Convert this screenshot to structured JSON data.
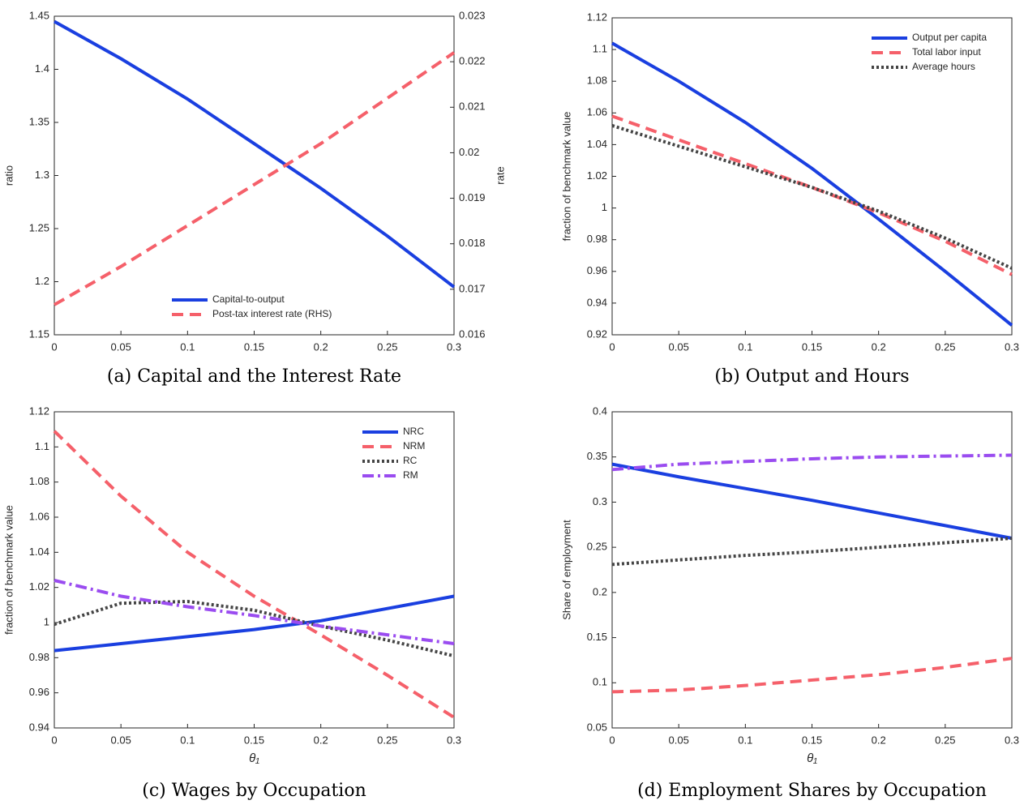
{
  "chart_data": [
    {
      "type": "line",
      "title": "(a) Capital and the Interest Rate",
      "ylabel": "ratio",
      "y2label": "rate",
      "x": [
        0,
        0.05,
        0.1,
        0.15,
        0.2,
        0.25,
        0.3
      ],
      "series": [
        {
          "name": "Capital-to-output",
          "color": "#1a3fe0",
          "style": "solid",
          "values": [
            1.445,
            1.41,
            1.372,
            1.33,
            1.288,
            1.243,
            1.195
          ]
        },
        {
          "name": "Post-tax interest rate (RHS)",
          "color": "#f5606a",
          "style": "dashed",
          "axis": "y2",
          "values": [
            0.01666,
            0.0175,
            0.0184,
            0.0193,
            0.0202,
            0.0212,
            0.0222
          ]
        }
      ],
      "xlim": [
        0,
        0.3
      ],
      "xticks": [
        0,
        0.05,
        0.1,
        0.15,
        0.2,
        0.25,
        0.3
      ],
      "ylim": [
        1.15,
        1.45
      ],
      "yticks": [
        1.15,
        1.2,
        1.25,
        1.3,
        1.35,
        1.4,
        1.45
      ],
      "y2lim": [
        0.016,
        0.023
      ],
      "y2ticks": [
        0.016,
        0.017,
        0.018,
        0.019,
        0.02,
        0.021,
        0.022,
        0.023
      ],
      "legend": "bottom"
    },
    {
      "type": "line",
      "title": "(b) Output and Hours",
      "ylabel": "fraction of benchmark value",
      "x": [
        0,
        0.05,
        0.1,
        0.15,
        0.2,
        0.25,
        0.3
      ],
      "series": [
        {
          "name": "Output per capita",
          "color": "#1a3fe0",
          "style": "solid",
          "values": [
            1.104,
            1.08,
            1.054,
            1.025,
            0.993,
            0.96,
            0.926
          ]
        },
        {
          "name": "Total labor input",
          "color": "#f5606a",
          "style": "dashed",
          "values": [
            1.058,
            1.043,
            1.028,
            1.013,
            0.997,
            0.979,
            0.958
          ]
        },
        {
          "name": "Average hours",
          "color": "#444444",
          "style": "dotted",
          "values": [
            1.052,
            1.039,
            1.026,
            1.013,
            0.998,
            0.981,
            0.962
          ]
        }
      ],
      "xlim": [
        0,
        0.3
      ],
      "xticks": [
        0,
        0.05,
        0.1,
        0.15,
        0.2,
        0.25,
        0.3
      ],
      "ylim": [
        0.92,
        1.12
      ],
      "yticks": [
        0.92,
        0.94,
        0.96,
        0.98,
        1,
        1.02,
        1.04,
        1.06,
        1.08,
        1.1,
        1.12
      ],
      "legend": "upper right"
    },
    {
      "type": "line",
      "title": "(c) Wages by Occupation",
      "ylabel": "fraction of benchmark value",
      "xlabel": "θ₁",
      "x": [
        0,
        0.05,
        0.1,
        0.15,
        0.2,
        0.25,
        0.3
      ],
      "series": [
        {
          "name": "NRC",
          "color": "#1a3fe0",
          "style": "solid",
          "values": [
            0.984,
            0.988,
            0.992,
            0.996,
            1.001,
            1.008,
            1.015
          ]
        },
        {
          "name": "NRM",
          "color": "#f5606a",
          "style": "dashed",
          "values": [
            1.109,
            1.072,
            1.04,
            1.015,
            0.993,
            0.97,
            0.946
          ]
        },
        {
          "name": "RC",
          "color": "#444444",
          "style": "dotted",
          "values": [
            0.999,
            1.011,
            1.012,
            1.007,
            0.998,
            0.99,
            0.981
          ]
        },
        {
          "name": "RM",
          "color": "#9a4cf0",
          "style": "dashdot",
          "values": [
            1.024,
            1.015,
            1.009,
            1.004,
            0.998,
            0.993,
            0.988
          ]
        }
      ],
      "xlim": [
        0,
        0.3
      ],
      "xticks": [
        0,
        0.05,
        0.1,
        0.15,
        0.2,
        0.25,
        0.3
      ],
      "ylim": [
        0.94,
        1.12
      ],
      "yticks": [
        0.94,
        0.96,
        0.98,
        1,
        1.02,
        1.04,
        1.06,
        1.08,
        1.1,
        1.12
      ],
      "legend": "upper right"
    },
    {
      "type": "line",
      "title": "(d) Employment Shares by Occupation",
      "ylabel": "Share of employment",
      "xlabel": "θ₁",
      "x": [
        0,
        0.05,
        0.1,
        0.15,
        0.2,
        0.25,
        0.3
      ],
      "series": [
        {
          "color": "#1a3fe0",
          "style": "solid",
          "values": [
            0.342,
            0.328,
            0.315,
            0.302,
            0.288,
            0.274,
            0.26
          ]
        },
        {
          "color": "#f5606a",
          "style": "dashed",
          "values": [
            0.09,
            0.092,
            0.097,
            0.103,
            0.109,
            0.117,
            0.127
          ]
        },
        {
          "color": "#444444",
          "style": "dotted",
          "values": [
            0.231,
            0.236,
            0.241,
            0.245,
            0.25,
            0.255,
            0.26
          ]
        },
        {
          "color": "#9a4cf0",
          "style": "dashdot",
          "values": [
            0.336,
            0.342,
            0.345,
            0.348,
            0.35,
            0.351,
            0.352
          ]
        }
      ],
      "xlim": [
        0,
        0.3
      ],
      "xticks": [
        0,
        0.05,
        0.1,
        0.15,
        0.2,
        0.25,
        0.3
      ],
      "ylim": [
        0.05,
        0.4
      ],
      "yticks": [
        0.05,
        0.1,
        0.15,
        0.2,
        0.25,
        0.3,
        0.35,
        0.4
      ]
    }
  ]
}
